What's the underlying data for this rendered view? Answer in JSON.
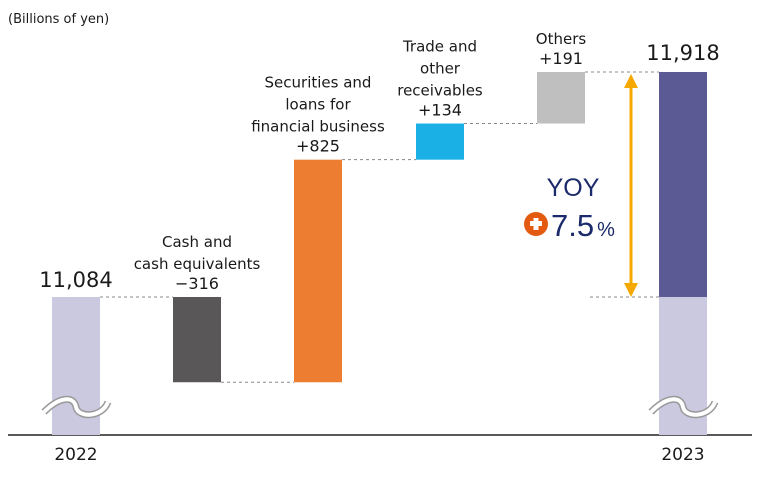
{
  "chart_data": {
    "type": "waterfall",
    "unit_label": "(Billions of yen)",
    "categories": [
      "2022",
      "Cash and cash equivalents",
      "Securities and loans for financial business",
      "Trade and other receivables",
      "Others",
      "2023"
    ],
    "label_lines": [
      [
        "Cash and",
        "cash equivalents"
      ],
      [
        "Securities and",
        "loans for",
        "financial business"
      ],
      [
        "Trade and",
        "other",
        "receivables"
      ],
      [
        "Others"
      ]
    ],
    "start": {
      "label": "2022",
      "value": 11084,
      "display": "11,084"
    },
    "changes": [
      {
        "value": -316,
        "display": "−316",
        "color": "#595757"
      },
      {
        "value": 825,
        "display": "+825",
        "color": "#ed7d31"
      },
      {
        "value": 134,
        "display": "+134",
        "color": "#1ab0e6"
      },
      {
        "value": 191,
        "display": "+191",
        "color": "#bfbfbf"
      }
    ],
    "end": {
      "label": "2023",
      "value": 11918,
      "display": "11,918"
    },
    "yoy": {
      "label": "YOY",
      "value": "7.5",
      "unit": "%"
    },
    "colors": {
      "base": "#cbc9e0",
      "increase_total": "#5c5a94",
      "arrow": "#f5a800",
      "yoy_text": "#1b2a6b",
      "plus_badge": "#e55a11"
    },
    "axis_break": true
  }
}
